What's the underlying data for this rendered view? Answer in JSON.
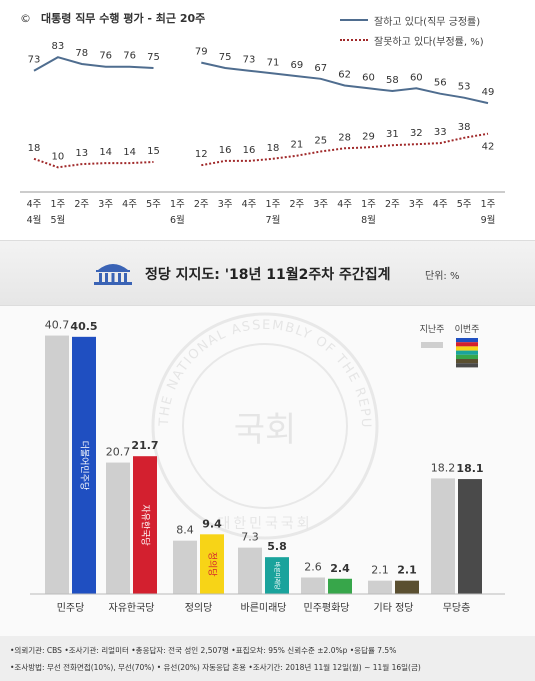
{
  "top_chart": {
    "title_mark": "©",
    "title": "대통령 직무 수행 평가 - 최근 20주",
    "legend": {
      "approve": "잘하고 있다(직무 긍정률)",
      "disapprove": "잘못하고 있다(부정률, %)"
    },
    "colors": {
      "approve": "#4f6d8f",
      "disapprove": "#a0292a"
    }
  },
  "party_chart": {
    "title": "정당 지지도: '18년 11월2주차 주간집계",
    "unit": "단위: %",
    "legend": {
      "prev": "지난주",
      "curr": "이번주"
    },
    "watermark_text": "THE NATIONAL ASSEMBLY OF THE REPUBLIC OF KOREA",
    "watermark_korean": "대한민국국회",
    "watermark_seal": "국회",
    "logos": {
      "minju": "더불어민주당",
      "liberty": "자유한국당",
      "justice": "정의당",
      "bareun": "바른미래당",
      "peace": "민주평화당"
    }
  },
  "chart_data": [
    {
      "type": "line",
      "title": "대통령 직무 수행 평가 - 최근 20주",
      "x": [
        "4주\n4월",
        "1주\n5월",
        "2주",
        "3주",
        "4주",
        "5주",
        "1주\n6월",
        "2주",
        "3주",
        "4주",
        "1주\n7월",
        "2주",
        "3주",
        "4주",
        "1주\n8월",
        "2주",
        "3주",
        "4주",
        "5주",
        "1주\n9월"
      ],
      "series": [
        {
          "name": "잘하고 있다(직무 긍정률)",
          "values": [
            73,
            83,
            78,
            76,
            76,
            75,
            null,
            79,
            75,
            73,
            71,
            69,
            67,
            62,
            60,
            58,
            60,
            56,
            53,
            49
          ]
        },
        {
          "name": "잘못하고 있다(부정률, %)",
          "values": [
            18,
            10,
            13,
            14,
            14,
            15,
            null,
            12,
            16,
            16,
            18,
            21,
            25,
            28,
            29,
            31,
            32,
            33,
            38,
            42
          ]
        }
      ],
      "legend_position": "top-right",
      "grid": false
    },
    {
      "type": "bar",
      "title": "정당 지지도: '18년 11월2주차 주간집계",
      "categories": [
        "민주당",
        "자유한국당",
        "정의당",
        "바른미래당",
        "민주평화당",
        "기타 정당",
        "무당층"
      ],
      "series": [
        {
          "name": "지난주",
          "values": [
            40.7,
            20.7,
            8.4,
            7.3,
            2.6,
            2.1,
            18.2
          ]
        },
        {
          "name": "이번주",
          "values": [
            40.5,
            21.7,
            9.4,
            5.8,
            2.4,
            2.1,
            18.1
          ]
        }
      ],
      "colors": {
        "prev": "#cfcfcf",
        "curr": [
          "#1f4fc1",
          "#d3202f",
          "#f7d417",
          "#1aa39c",
          "#37a64a",
          "#5a4f30",
          "#4a4a4a"
        ]
      },
      "legend_position": "top-right",
      "grid": false
    }
  ],
  "footer": {
    "line1": "•의뢰기관: CBS  •조사기관: 리얼미터  •총응답자: 전국 성인 2,507명  •표집오차: 95% 신뢰수준 ±2.0%p  •응답률 7.5%",
    "line2": "•조사방법: 무선 전화면접(10%), 무선(70%) • 유선(20%) 자동응답 혼용  •조사기간: 2018년 11월 12일(월) ~ 11월 16일(금)"
  }
}
